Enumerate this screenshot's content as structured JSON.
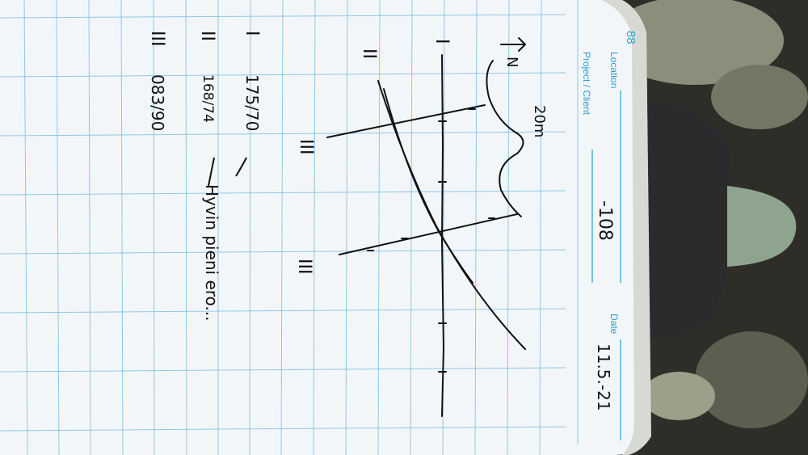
{
  "notebook": {
    "page_number": "88",
    "location_label": "Location",
    "project_label": "Project / Client",
    "date_label": "Date"
  },
  "handwriting": {
    "location_value": "-108",
    "date_value": "11.5.-21",
    "north_label": "N",
    "distance_label": "20m",
    "line_label_i": "I",
    "line_label_ii": "II",
    "line_label_iii_top": "III",
    "line_label_iii_bottom": "III",
    "readings": [
      {
        "label": "I",
        "value": "175/70"
      },
      {
        "label": "II",
        "value": "168/74"
      },
      {
        "label": "III",
        "value": "083/90"
      }
    ],
    "note": "Hyvin pieni ero..."
  },
  "colors": {
    "paper": "#f3f6f8",
    "grid_lines": "#8fc7e8",
    "printed_text": "#2a9fd6",
    "ink": "#111111",
    "boot": "#2b2b2e"
  }
}
